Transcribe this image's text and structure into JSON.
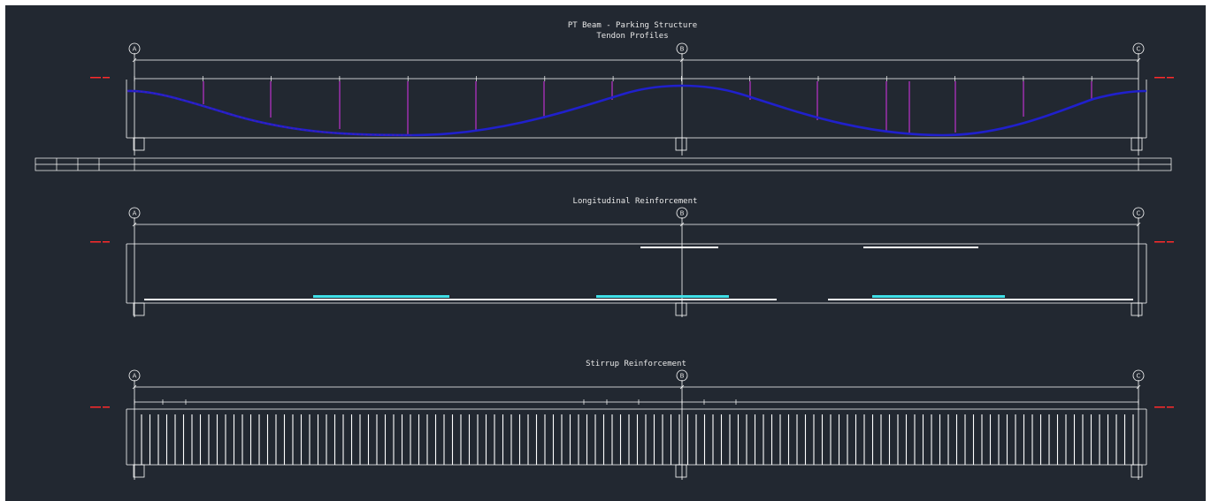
{
  "drawing": {
    "title_line1": "PT Beam - Parking Structure",
    "title_line2": "Tendon Profiles",
    "long_title": "Longitudinal Reinforcement",
    "stirrup_title": "Stirrup Reinforcement"
  },
  "grid_lines": [
    "A",
    "B",
    "C"
  ],
  "colors": {
    "background": "#222831",
    "linework": "#ffffff",
    "tendon": "#2222cc",
    "support_lines": "#b030c0",
    "rebar_highlight": "#40e0e8",
    "elevation_text": "#ff2a2a"
  }
}
